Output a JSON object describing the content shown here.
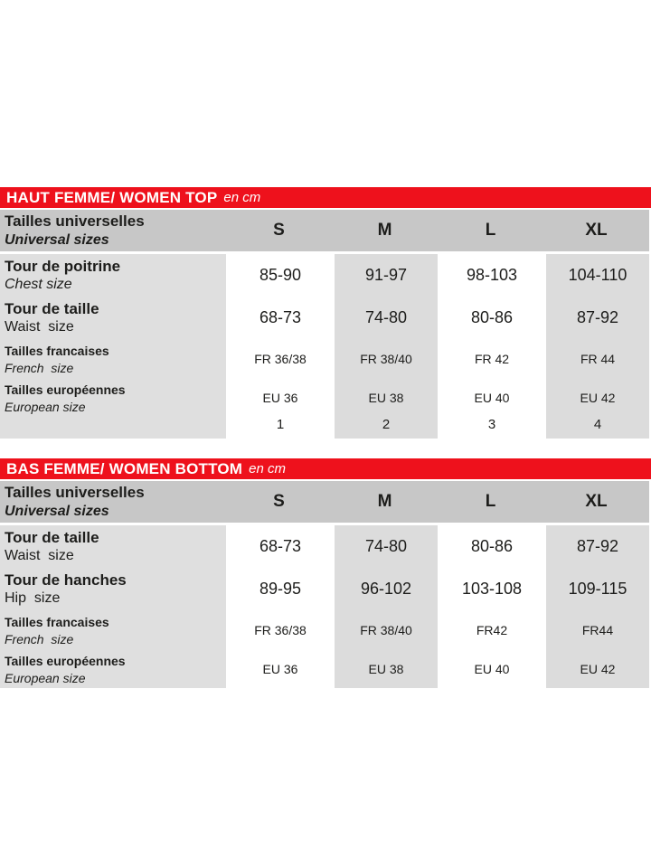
{
  "colors": {
    "title_bar_red": "#ee111c",
    "header_row_gray": "#c7c7c7",
    "label_column_gray": "#dfdfdf",
    "value_column_gray": "#dcdcdc",
    "text": "#1d1d1b"
  },
  "tables": [
    {
      "title": "HAUT FEMME/ WOMEN TOP",
      "unit": "en cm",
      "header": {
        "label_fr": "Tailles universelles",
        "label_en": "Universal sizes",
        "columns": [
          "S",
          "M",
          "L",
          "XL"
        ]
      },
      "rows": [
        {
          "label_fr": "Tour de poitrine",
          "label_en": "Chest size",
          "values": [
            "85-90",
            "91-97",
            "98-103",
            "104-110"
          ]
        },
        {
          "label_fr": "Tour de taille",
          "label_en": "Waist  size",
          "values": [
            "68-73",
            "74-80",
            "80-86",
            "87-92"
          ]
        },
        {
          "label_fr": "Tailles francaises",
          "label_en": "French  size",
          "values": [
            "FR 36/38",
            "FR 38/40",
            "FR 42",
            "FR 44"
          ]
        },
        {
          "label_fr": "Tailles européennes",
          "label_en": "European size",
          "values": [
            "EU 36",
            "EU 38",
            "EU 40",
            "EU 42"
          ]
        },
        {
          "label_fr": "",
          "label_en": "",
          "values": [
            "1",
            "2",
            "3",
            "4"
          ]
        }
      ]
    },
    {
      "title": "BAS FEMME/ WOMEN BOTTOM",
      "unit": "en cm",
      "header": {
        "label_fr": "Tailles universelles",
        "label_en": "Universal sizes",
        "columns": [
          "S",
          "M",
          "L",
          "XL"
        ]
      },
      "rows": [
        {
          "label_fr": "Tour de taille",
          "label_en": "Waist  size",
          "values": [
            "68-73",
            "74-80",
            "80-86",
            "87-92"
          ]
        },
        {
          "label_fr": "Tour de hanches",
          "label_en": "Hip  size",
          "values": [
            "89-95",
            "96-102",
            "103-108",
            "109-115"
          ]
        },
        {
          "label_fr": "Tailles francaises",
          "label_en": "French  size",
          "values": [
            "FR 36/38",
            "FR 38/40",
            "FR42",
            "FR44"
          ]
        },
        {
          "label_fr": "Tailles européennes",
          "label_en": "European size",
          "values": [
            "EU 36",
            "EU 38",
            "EU 40",
            "EU 42"
          ]
        }
      ]
    }
  ]
}
